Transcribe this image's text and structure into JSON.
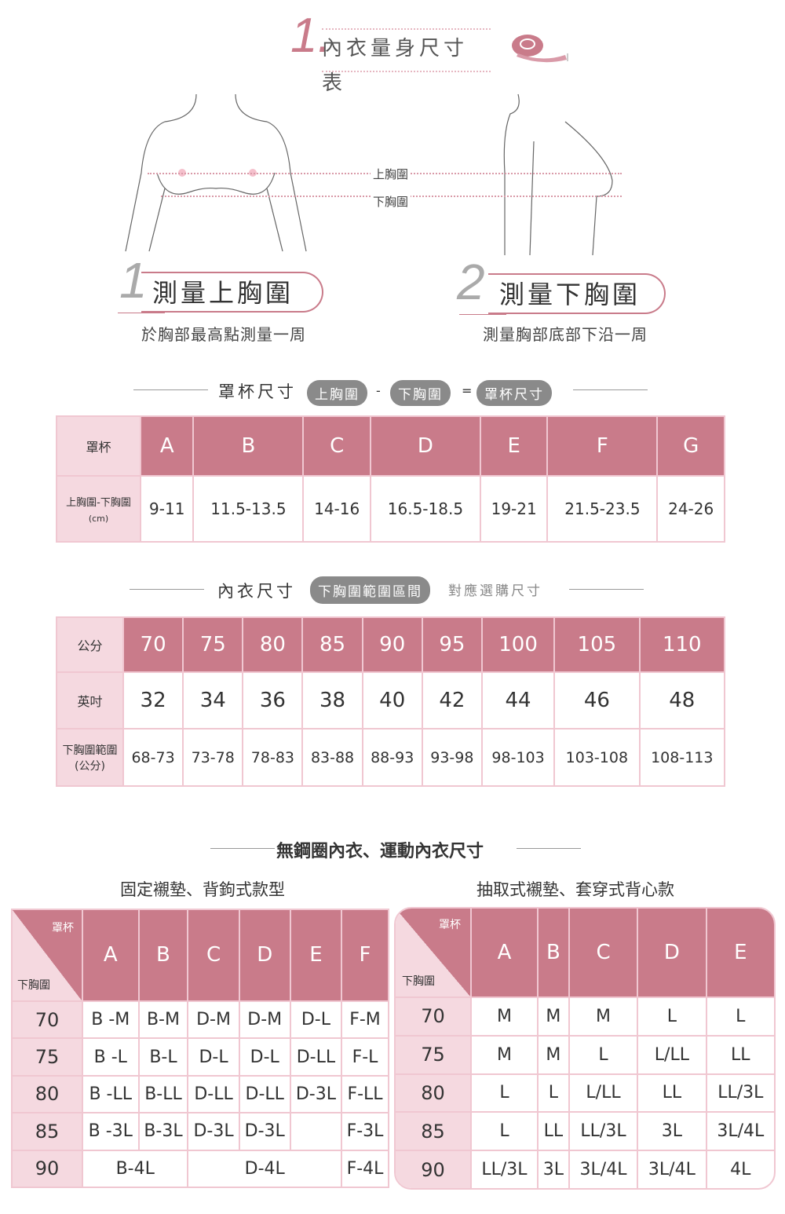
{
  "header": {
    "number": "1.",
    "title": "內衣量身尺寸表",
    "icon": "measuring-tape-icon"
  },
  "illustration": {
    "upper_label": "上胸圍",
    "lower_label": "下胸圍"
  },
  "steps": [
    {
      "number": "1",
      "title": "測量上胸圍",
      "desc": "於胸部最高點測量一周"
    },
    {
      "number": "2",
      "title": "測量下胸圍",
      "desc": "測量胸部底部下沿一周"
    }
  ],
  "cup_section": {
    "title": "罩杯尺寸",
    "formula": [
      "上胸圍",
      "-",
      "下胸圍",
      "=",
      "罩杯尺寸"
    ]
  },
  "cup_table": {
    "row_headers": [
      "罩杯",
      "上胸圍-下胸圍",
      "(cm)"
    ],
    "cups": [
      "A",
      "B",
      "C",
      "D",
      "E",
      "F",
      "G"
    ],
    "differences": [
      "9-11",
      "11.5-13.5",
      "14-16",
      "16.5-18.5",
      "19-21",
      "21.5-23.5",
      "24-26"
    ]
  },
  "bra_section": {
    "title": "內衣尺寸",
    "pill": "下胸圍範圍區間",
    "note": "對應選購尺寸"
  },
  "bra_table": {
    "row_headers": [
      "公分",
      "英吋",
      "下胸圍範圍",
      "(公分)"
    ],
    "cm": [
      "70",
      "75",
      "80",
      "85",
      "90",
      "95",
      "100",
      "105",
      "110"
    ],
    "inch": [
      "32",
      "34",
      "36",
      "38",
      "40",
      "42",
      "44",
      "46",
      "48"
    ],
    "ranges": [
      "68-73",
      "73-78",
      "78-83",
      "83-88",
      "88-93",
      "93-98",
      "98-103",
      "103-108",
      "108-113"
    ]
  },
  "wireless_section": {
    "title": "無鋼圈內衣、運動內衣尺寸",
    "left_title": "固定襯墊、背鉤式款型",
    "right_title": "抽取式襯墊、套穿式背心款"
  },
  "left_table": {
    "corner_top": "罩杯",
    "corner_bottom": "下胸圍",
    "cups": [
      "A",
      "B",
      "C",
      "D",
      "E",
      "F"
    ],
    "rows": [
      {
        "band": "70",
        "cells": [
          "B -M",
          "B-M",
          "D-M",
          "D-M",
          "D-L",
          "F-M"
        ]
      },
      {
        "band": "75",
        "cells": [
          "B -L",
          "B-L",
          "D-L",
          "D-L",
          "D-LL",
          "F-L"
        ]
      },
      {
        "band": "80",
        "cells": [
          "B -LL",
          "B-LL",
          "D-LL",
          "D-LL",
          "D-3L",
          "F-LL"
        ]
      },
      {
        "band": "85",
        "cells": [
          "B -3L",
          "B-3L",
          "D-3L",
          "D-3L",
          "",
          "F-3L"
        ]
      },
      {
        "band": "90",
        "cells": [
          "B-4L",
          "D-4L",
          "F-4L"
        ]
      }
    ]
  },
  "right_table": {
    "corner_top": "罩杯",
    "corner_bottom": "下胸圍",
    "cups": [
      "A",
      "B",
      "C",
      "D",
      "E"
    ],
    "rows": [
      {
        "band": "70",
        "cells": [
          "M",
          "M",
          "M",
          "L",
          "L"
        ]
      },
      {
        "band": "75",
        "cells": [
          "M",
          "M",
          "L",
          "L/LL",
          "LL"
        ]
      },
      {
        "band": "80",
        "cells": [
          "L",
          "L",
          "L/LL",
          "LL",
          "LL/3L"
        ]
      },
      {
        "band": "85",
        "cells": [
          "L",
          "LL",
          "LL/3L",
          "3L",
          "3L/4L"
        ]
      },
      {
        "band": "90",
        "cells": [
          "LL/3L",
          "3L",
          "3L/4L",
          "3L/4L",
          "4L"
        ]
      }
    ]
  },
  "colors": {
    "accent": "#c97b8a",
    "light": "#f5d9e0",
    "border": "#f0c7d1",
    "pill": "#8a8a8a"
  }
}
